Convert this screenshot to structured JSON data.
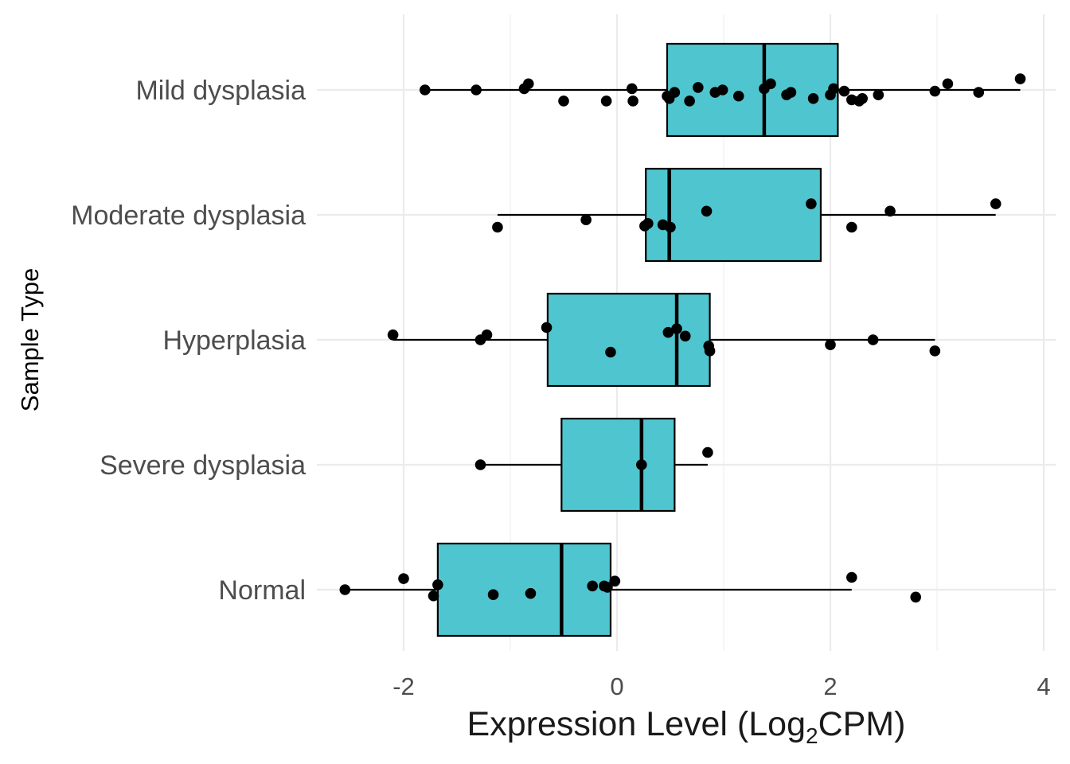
{
  "chart_data": {
    "type": "boxplot",
    "orientation": "horizontal",
    "xlabel": {
      "prefix": "Expression Level (Log",
      "subscript": "2",
      "suffix": "CPM)"
    },
    "ylabel": "Sample Type",
    "xlim": [
      -2.55,
      4.12
    ],
    "x_ticks": [
      -2,
      0,
      2,
      4
    ],
    "x_tick_labels": [
      "-2",
      "0",
      "2",
      "4"
    ],
    "grid": true,
    "fill_color": "#4fc6cf",
    "point_color": "#000000",
    "categories": [
      "Mild dysplasia",
      "Moderate dysplasia",
      "Hyperplasia",
      "Severe dysplasia",
      "Normal"
    ],
    "boxes": [
      {
        "category": "Mild dysplasia",
        "whisker_low": -1.8,
        "q1": 0.47,
        "median": 1.38,
        "q3": 2.07,
        "whisker_high": 3.78
      },
      {
        "category": "Moderate dysplasia",
        "whisker_low": -1.12,
        "q1": 0.27,
        "median": 0.49,
        "q3": 1.91,
        "whisker_high": 3.55
      },
      {
        "category": "Hyperplasia",
        "whisker_low": -2.1,
        "q1": -0.65,
        "median": 0.56,
        "q3": 0.87,
        "whisker_high": 2.98
      },
      {
        "category": "Severe dysplasia",
        "whisker_low": -1.28,
        "q1": -0.52,
        "median": 0.23,
        "q3": 0.54,
        "whisker_high": 0.85
      },
      {
        "category": "Normal",
        "whisker_low": -2.55,
        "q1": -1.68,
        "median": -0.52,
        "q3": -0.06,
        "whisker_high": 2.2
      }
    ],
    "points": [
      {
        "category": "Mild dysplasia",
        "x": -1.8,
        "jitter": 0.0
      },
      {
        "category": "Mild dysplasia",
        "x": -1.32,
        "jitter": 0.0
      },
      {
        "category": "Mild dysplasia",
        "x": -0.83,
        "jitter": 0.05
      },
      {
        "category": "Mild dysplasia",
        "x": -0.87,
        "jitter": 0.01
      },
      {
        "category": "Mild dysplasia",
        "x": -0.5,
        "jitter": -0.09
      },
      {
        "category": "Mild dysplasia",
        "x": -0.1,
        "jitter": -0.09
      },
      {
        "category": "Mild dysplasia",
        "x": 0.14,
        "jitter": 0.01
      },
      {
        "category": "Mild dysplasia",
        "x": 0.15,
        "jitter": -0.09
      },
      {
        "category": "Mild dysplasia",
        "x": 0.47,
        "jitter": -0.05
      },
      {
        "category": "Mild dysplasia",
        "x": 0.49,
        "jitter": -0.07
      },
      {
        "category": "Mild dysplasia",
        "x": 0.54,
        "jitter": -0.02
      },
      {
        "category": "Mild dysplasia",
        "x": 0.68,
        "jitter": -0.09
      },
      {
        "category": "Mild dysplasia",
        "x": 0.76,
        "jitter": 0.02
      },
      {
        "category": "Mild dysplasia",
        "x": 0.92,
        "jitter": -0.02
      },
      {
        "category": "Mild dysplasia",
        "x": 0.99,
        "jitter": 0.0
      },
      {
        "category": "Mild dysplasia",
        "x": 1.14,
        "jitter": -0.05
      },
      {
        "category": "Mild dysplasia",
        "x": 1.38,
        "jitter": 0.01
      },
      {
        "category": "Mild dysplasia",
        "x": 1.44,
        "jitter": 0.05
      },
      {
        "category": "Mild dysplasia",
        "x": 1.59,
        "jitter": -0.04
      },
      {
        "category": "Mild dysplasia",
        "x": 1.63,
        "jitter": -0.02
      },
      {
        "category": "Mild dysplasia",
        "x": 1.84,
        "jitter": -0.07
      },
      {
        "category": "Mild dysplasia",
        "x": 2.0,
        "jitter": -0.04
      },
      {
        "category": "Mild dysplasia",
        "x": 2.03,
        "jitter": 0.01
      },
      {
        "category": "Mild dysplasia",
        "x": 2.13,
        "jitter": -0.01
      },
      {
        "category": "Mild dysplasia",
        "x": 2.2,
        "jitter": -0.08
      },
      {
        "category": "Mild dysplasia",
        "x": 2.27,
        "jitter": -0.09
      },
      {
        "category": "Mild dysplasia",
        "x": 2.3,
        "jitter": -0.07
      },
      {
        "category": "Mild dysplasia",
        "x": 2.45,
        "jitter": -0.04
      },
      {
        "category": "Mild dysplasia",
        "x": 2.98,
        "jitter": -0.01
      },
      {
        "category": "Mild dysplasia",
        "x": 3.1,
        "jitter": 0.05
      },
      {
        "category": "Mild dysplasia",
        "x": 3.39,
        "jitter": -0.02
      },
      {
        "category": "Mild dysplasia",
        "x": 3.78,
        "jitter": 0.09
      },
      {
        "category": "Moderate dysplasia",
        "x": -1.12,
        "jitter": -0.1
      },
      {
        "category": "Moderate dysplasia",
        "x": -0.29,
        "jitter": -0.04
      },
      {
        "category": "Moderate dysplasia",
        "x": 0.26,
        "jitter": -0.09
      },
      {
        "category": "Moderate dysplasia",
        "x": 0.29,
        "jitter": -0.07
      },
      {
        "category": "Moderate dysplasia",
        "x": 0.43,
        "jitter": -0.08
      },
      {
        "category": "Moderate dysplasia",
        "x": 0.5,
        "jitter": -0.1
      },
      {
        "category": "Moderate dysplasia",
        "x": 0.84,
        "jitter": 0.03
      },
      {
        "category": "Moderate dysplasia",
        "x": 1.82,
        "jitter": 0.09
      },
      {
        "category": "Moderate dysplasia",
        "x": 2.2,
        "jitter": -0.1
      },
      {
        "category": "Moderate dysplasia",
        "x": 2.56,
        "jitter": 0.03
      },
      {
        "category": "Moderate dysplasia",
        "x": 3.55,
        "jitter": 0.09
      },
      {
        "category": "Hyperplasia",
        "x": -2.1,
        "jitter": 0.04
      },
      {
        "category": "Hyperplasia",
        "x": -1.28,
        "jitter": 0.0
      },
      {
        "category": "Hyperplasia",
        "x": -1.22,
        "jitter": 0.04
      },
      {
        "category": "Hyperplasia",
        "x": -0.66,
        "jitter": 0.1
      },
      {
        "category": "Hyperplasia",
        "x": -0.06,
        "jitter": -0.1
      },
      {
        "category": "Hyperplasia",
        "x": 0.48,
        "jitter": 0.06
      },
      {
        "category": "Hyperplasia",
        "x": 0.56,
        "jitter": 0.09
      },
      {
        "category": "Hyperplasia",
        "x": 0.64,
        "jitter": 0.03
      },
      {
        "category": "Hyperplasia",
        "x": 0.86,
        "jitter": -0.05
      },
      {
        "category": "Hyperplasia",
        "x": 0.87,
        "jitter": -0.09
      },
      {
        "category": "Hyperplasia",
        "x": 2.0,
        "jitter": -0.04
      },
      {
        "category": "Hyperplasia",
        "x": 2.4,
        "jitter": 0.0
      },
      {
        "category": "Hyperplasia",
        "x": 2.98,
        "jitter": -0.09
      },
      {
        "category": "Severe dysplasia",
        "x": -1.28,
        "jitter": 0.0
      },
      {
        "category": "Severe dysplasia",
        "x": 0.23,
        "jitter": 0.0
      },
      {
        "category": "Severe dysplasia",
        "x": 0.85,
        "jitter": 0.1
      },
      {
        "category": "Normal",
        "x": -2.55,
        "jitter": 0.0
      },
      {
        "category": "Normal",
        "x": -2.0,
        "jitter": 0.09
      },
      {
        "category": "Normal",
        "x": -1.72,
        "jitter": -0.05
      },
      {
        "category": "Normal",
        "x": -1.68,
        "jitter": 0.04
      },
      {
        "category": "Normal",
        "x": -1.16,
        "jitter": -0.04
      },
      {
        "category": "Normal",
        "x": -0.81,
        "jitter": -0.03
      },
      {
        "category": "Normal",
        "x": -0.23,
        "jitter": 0.03
      },
      {
        "category": "Normal",
        "x": -0.12,
        "jitter": 0.03
      },
      {
        "category": "Normal",
        "x": -0.09,
        "jitter": 0.02
      },
      {
        "category": "Normal",
        "x": -0.02,
        "jitter": 0.07
      },
      {
        "category": "Normal",
        "x": 2.2,
        "jitter": 0.1
      },
      {
        "category": "Normal",
        "x": 2.8,
        "jitter": -0.06
      }
    ]
  }
}
